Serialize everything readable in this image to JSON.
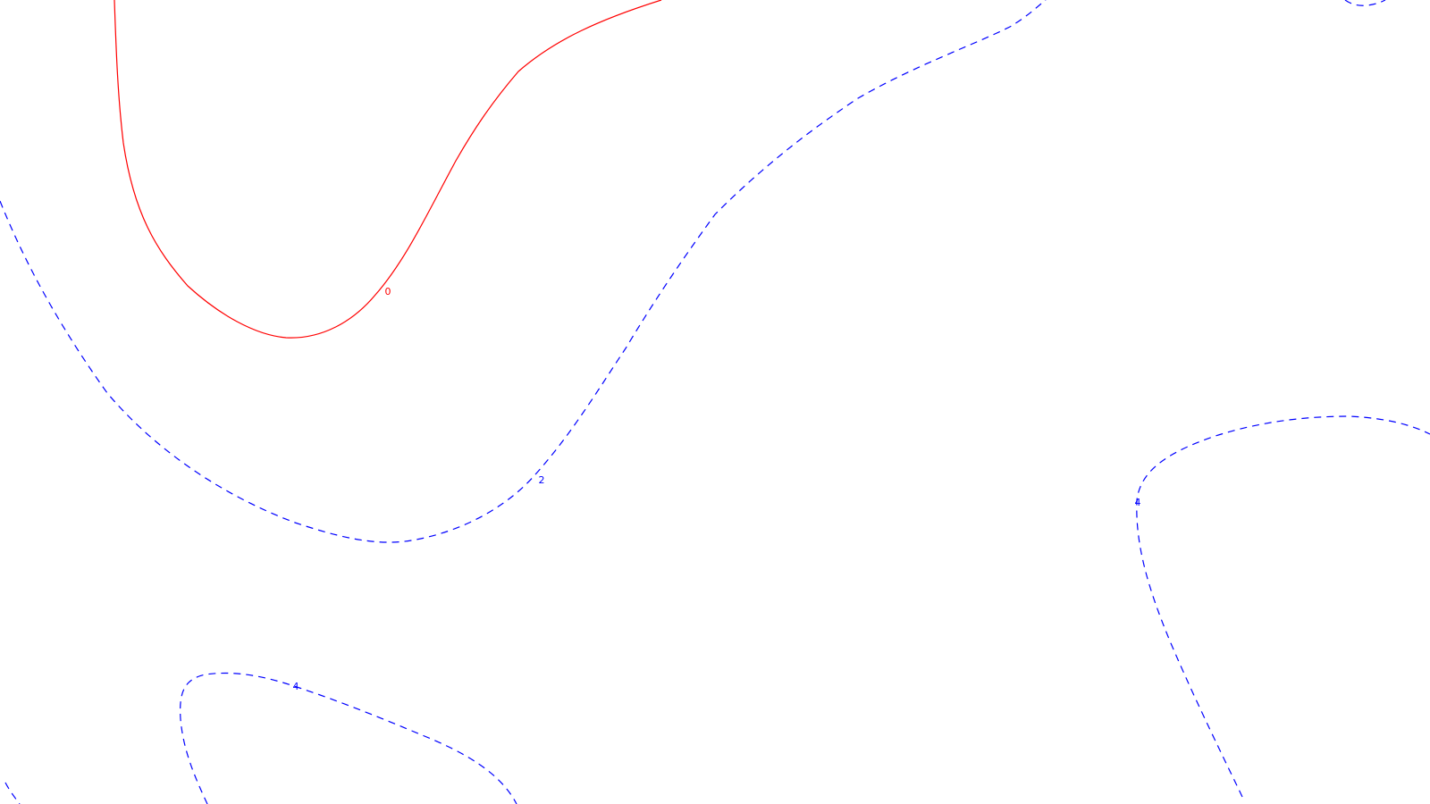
{
  "map": {
    "contour_labels": {
      "zero": "0",
      "two": "2",
      "four_bottom": "4",
      "four_right": "4"
    },
    "colors": {
      "background": "#ffffff",
      "zero_line": "#ff0000",
      "positive_lines": "#0000ff"
    },
    "line_styles": {
      "zero": "solid",
      "positive": "dashed"
    }
  }
}
